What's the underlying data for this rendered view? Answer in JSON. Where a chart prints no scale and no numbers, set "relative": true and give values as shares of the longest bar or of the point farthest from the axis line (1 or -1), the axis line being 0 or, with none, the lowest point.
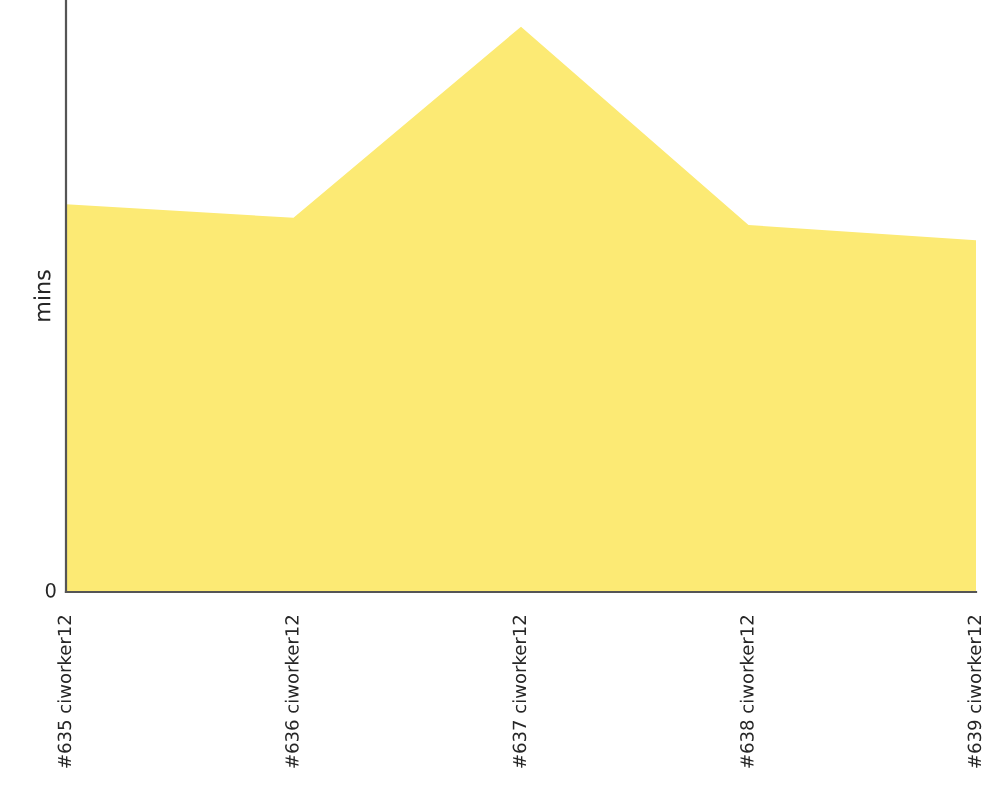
{
  "chart_data": {
    "type": "area",
    "ylabel": "mins",
    "relative": true,
    "categories": [
      "#635 ciworker12",
      "#636 ciworker12",
      "#637 ciworker12",
      "#638 ciworker12",
      "#639 ciworker12"
    ],
    "series": [
      {
        "color": "#fcea74",
        "values": [
          0.686,
          0.662,
          1,
          0.649,
          0.622
        ]
      }
    ],
    "annotations": [
      "0"
    ],
    "grid": false,
    "legend": false
  }
}
